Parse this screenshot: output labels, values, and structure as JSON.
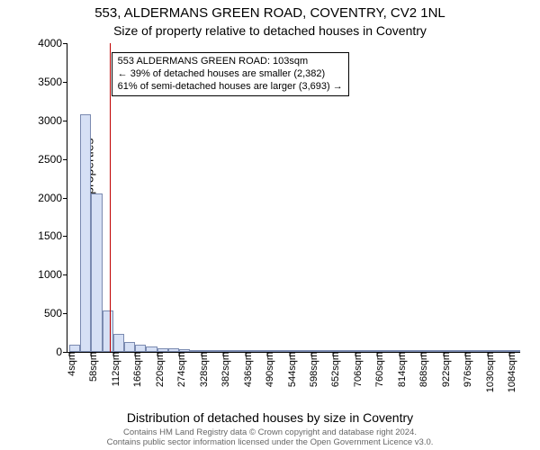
{
  "title_line1": "553, ALDERMANS GREEN ROAD, COVENTRY, CV2 1NL",
  "title_line2": "Size of property relative to detached houses in Coventry",
  "ylabel": "Number of detached properties",
  "xlabel": "Distribution of detached houses by size in Coventry",
  "footer_line1": "Contains HM Land Registry data © Crown copyright and database right 2024.",
  "footer_line2": "Contains public sector information licensed under the Open Government Licence v3.0.",
  "chart": {
    "type": "histogram",
    "background_color": "#ffffff",
    "bar_fill": "#d6e0f5",
    "bar_border": "#7a8ab0",
    "refline_color": "#c00000",
    "axis_color": "#000000",
    "ylim": [
      0,
      4000
    ],
    "ytick_step": 500,
    "yticks": [
      0,
      500,
      1000,
      1500,
      2000,
      2500,
      3000,
      3500,
      4000
    ],
    "x_min": 0,
    "x_max": 1110,
    "x_tick_start": 4,
    "x_tick_step": 54,
    "x_tick_count": 21,
    "bin_width": 27,
    "bar_values": [
      90,
      3080,
      2050,
      540,
      230,
      130,
      90,
      70,
      50,
      50,
      40,
      20,
      10,
      10,
      5,
      5,
      5,
      5,
      3,
      3,
      3,
      3,
      3,
      3,
      3,
      3,
      3,
      3,
      3,
      3,
      3,
      3,
      3,
      3,
      3,
      3,
      3,
      3,
      3,
      3,
      3
    ],
    "reference_x": 103,
    "annotation": {
      "lines": [
        "553 ALDERMANS GREEN ROAD: 103sqm",
        "← 39% of detached houses are smaller (2,382)",
        "61% of semi-detached houses are larger (3,693) →"
      ],
      "border_color": "#000000",
      "background": "#ffffff",
      "fontsize": 11
    },
    "title_fontsize": 15,
    "subtitle_fontsize": 14,
    "axis_label_fontsize": 14,
    "tick_fontsize": 12,
    "x_tick_suffix": "sqm"
  }
}
